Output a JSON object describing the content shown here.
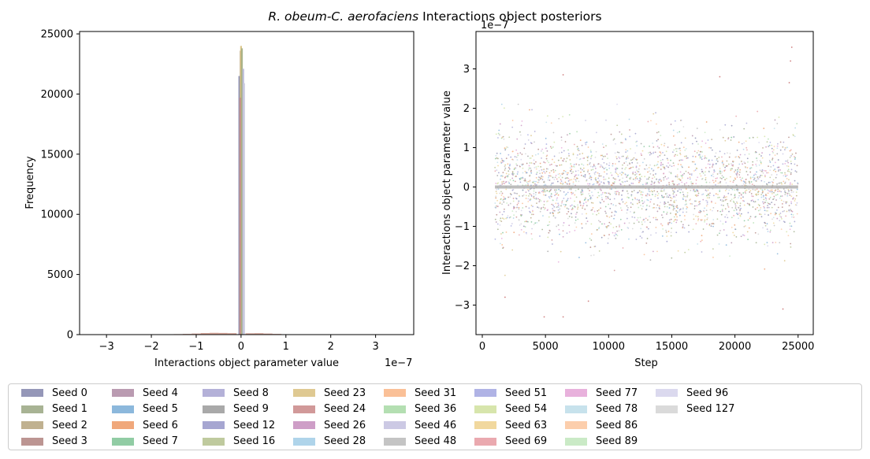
{
  "figure": {
    "title_italic": "R. obeum-C. aerofaciens",
    "title_rest": " Interactions object posteriors"
  },
  "chart_data": [
    {
      "type": "histogram",
      "xlabel": "Interactions object parameter value",
      "ylabel": "Frequency",
      "x_scale_label": "1e−7",
      "xlim": [
        -3.6,
        3.85
      ],
      "ylim": [
        0,
        25200
      ],
      "x_ticks": [
        -3,
        -2,
        -1,
        0,
        1,
        2,
        3
      ],
      "y_ticks": [
        0,
        5000,
        10000,
        15000,
        20000,
        25000
      ],
      "central_bars": [
        {
          "x": -0.04,
          "height": 21500,
          "color": "#8c8fb3"
        },
        {
          "x": -0.01,
          "height": 23600,
          "color": "#b8a57e"
        },
        {
          "x": 0.0,
          "height": 24000,
          "color": "#d9c27e"
        },
        {
          "x": 0.02,
          "height": 23800,
          "color": "#a3ad84"
        },
        {
          "x": 0.05,
          "height": 22100,
          "color": "#b7b7d8"
        },
        {
          "x": 0.07,
          "height": 20900,
          "color": "#cdcde0"
        },
        {
          "x": -0.02,
          "height": 19700,
          "color": "#c28a8a"
        }
      ],
      "low_tail_bins": [
        {
          "x": -1.4,
          "height": 40
        },
        {
          "x": -1.2,
          "height": 60
        },
        {
          "x": -1.0,
          "height": 90
        },
        {
          "x": -0.8,
          "height": 130
        },
        {
          "x": -0.6,
          "height": 150
        },
        {
          "x": -0.4,
          "height": 140
        },
        {
          "x": -0.2,
          "height": 120
        },
        {
          "x": 0.2,
          "height": 110
        },
        {
          "x": 0.4,
          "height": 120
        },
        {
          "x": 0.6,
          "height": 90
        },
        {
          "x": 0.8,
          "height": 60
        },
        {
          "x": 1.0,
          "height": 30
        }
      ]
    },
    {
      "type": "scatter",
      "xlabel": "Step",
      "ylabel": "Interactions object parameter value",
      "y_scale_label": "1e−7",
      "xlim": [
        -500,
        26200
      ],
      "ylim": [
        -3.75,
        3.95
      ],
      "x_ticks": [
        0,
        5000,
        10000,
        15000,
        20000,
        25000
      ],
      "y_ticks": [
        -3,
        -2,
        -1,
        0,
        1,
        2,
        3
      ],
      "x_range": [
        1000,
        25000
      ],
      "typical_spread": 0.9,
      "extreme_points": [
        {
          "x": 24500,
          "y": 3.55
        },
        {
          "x": 24400,
          "y": 3.2
        },
        {
          "x": 24300,
          "y": 2.65
        },
        {
          "x": 6400,
          "y": 2.85
        },
        {
          "x": 18800,
          "y": 2.8
        },
        {
          "x": 4900,
          "y": -3.3
        },
        {
          "x": 6400,
          "y": -3.3
        },
        {
          "x": 23800,
          "y": -3.1
        },
        {
          "x": 1800,
          "y": -2.8
        },
        {
          "x": 8400,
          "y": -2.9
        }
      ]
    }
  ],
  "legend": {
    "items": [
      {
        "label": "Seed 0",
        "color": "#8a8cb0"
      },
      {
        "label": "Seed 1",
        "color": "#9eab88"
      },
      {
        "label": "Seed 2",
        "color": "#b9a884"
      },
      {
        "label": "Seed 3",
        "color": "#b58a86"
      },
      {
        "label": "Seed 4",
        "color": "#b290a8"
      },
      {
        "label": "Seed 5",
        "color": "#7fb0d8"
      },
      {
        "label": "Seed 6",
        "color": "#ee9f6d"
      },
      {
        "label": "Seed 7",
        "color": "#85c69a"
      },
      {
        "label": "Seed 8",
        "color": "#aca8d4"
      },
      {
        "label": "Seed 9",
        "color": "#a0a0a0"
      },
      {
        "label": "Seed 12",
        "color": "#9c9ccc"
      },
      {
        "label": "Seed 16",
        "color": "#b8c494"
      },
      {
        "label": "Seed 23",
        "color": "#dbc386"
      },
      {
        "label": "Seed 24",
        "color": "#cc8e8e"
      },
      {
        "label": "Seed 26",
        "color": "#c994c1"
      },
      {
        "label": "Seed 28",
        "color": "#a6cfe8"
      },
      {
        "label": "Seed 31",
        "color": "#f9b98c"
      },
      {
        "label": "Seed 36",
        "color": "#acdcaa"
      },
      {
        "label": "Seed 46",
        "color": "#c6c3e1"
      },
      {
        "label": "Seed 48",
        "color": "#bebebe"
      },
      {
        "label": "Seed 51",
        "color": "#a7abe2"
      },
      {
        "label": "Seed 54",
        "color": "#d3e2a3"
      },
      {
        "label": "Seed 63",
        "color": "#f0d493"
      },
      {
        "label": "Seed 69",
        "color": "#e8a0a6"
      },
      {
        "label": "Seed 77",
        "color": "#e6a8d8"
      },
      {
        "label": "Seed 78",
        "color": "#c1dfea"
      },
      {
        "label": "Seed 86",
        "color": "#fcc9a3"
      },
      {
        "label": "Seed 89",
        "color": "#c4e8c0"
      },
      {
        "label": "Seed 96",
        "color": "#d7d5ec"
      },
      {
        "label": "Seed 127",
        "color": "#d6d6d6"
      }
    ]
  }
}
